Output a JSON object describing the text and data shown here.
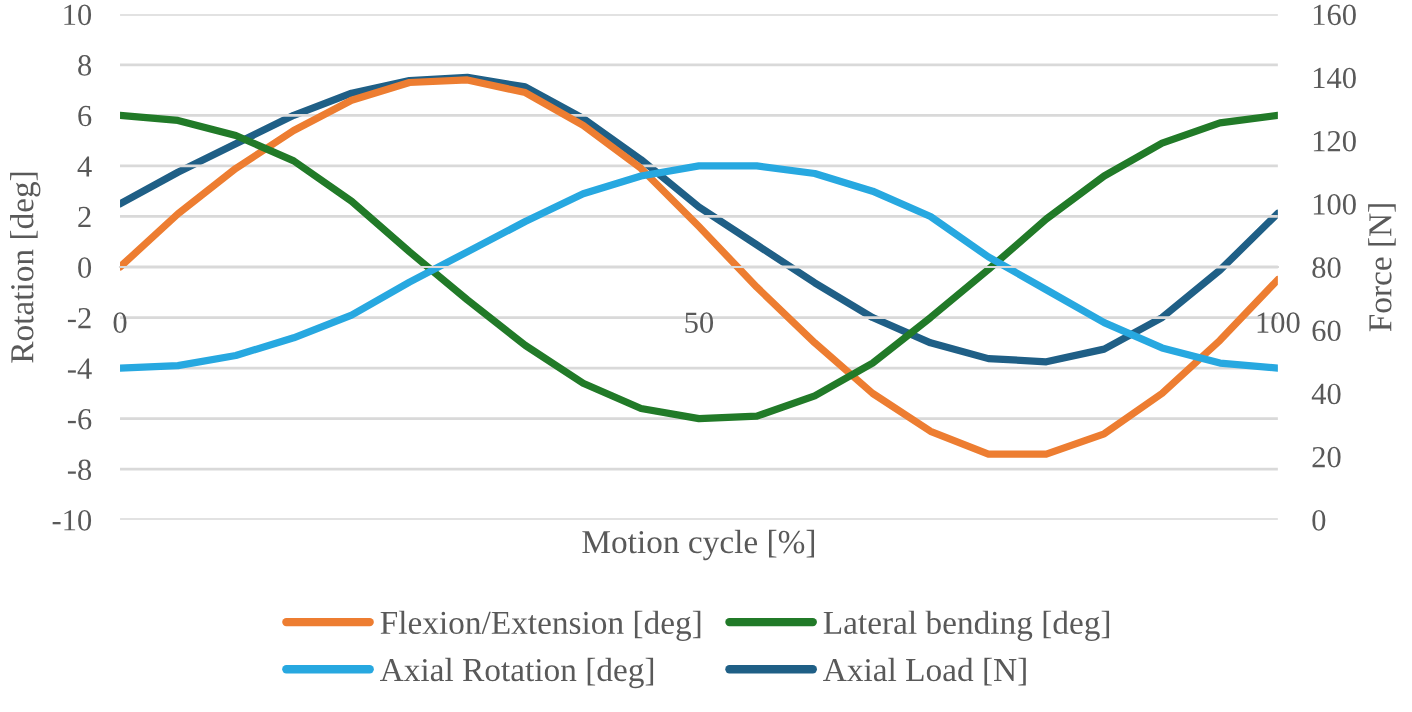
{
  "chart_data": {
    "type": "line",
    "xlabel": "Motion cycle [%]",
    "ylabel": "Rotation [deg]",
    "y2label": "Force [N]",
    "x": [
      0,
      5,
      10,
      15,
      20,
      25,
      30,
      35,
      40,
      45,
      50,
      55,
      60,
      65,
      70,
      75,
      80,
      85,
      90,
      95,
      100
    ],
    "series": [
      {
        "name": "Flexion/Extension [deg]",
        "color": "#ed7d31",
        "values": [
          0,
          2.1,
          3.9,
          5.4,
          6.6,
          7.3,
          7.4,
          6.9,
          5.6,
          3.9,
          1.6,
          -0.8,
          -3.0,
          -5.0,
          -6.5,
          -7.4,
          -7.4,
          -6.6,
          -5.0,
          -2.9,
          -0.5
        ]
      },
      {
        "name": "Lateral bending [deg]",
        "color": "#217a28",
        "values": [
          6.0,
          5.8,
          5.2,
          4.2,
          2.6,
          0.6,
          -1.3,
          -3.1,
          -4.6,
          -5.6,
          -6.0,
          -5.9,
          -5.1,
          -3.8,
          -2.0,
          -0.1,
          1.9,
          3.6,
          4.9,
          5.7,
          6.0
        ]
      },
      {
        "name": "Axial Rotation [deg]",
        "color": "#27a8e0",
        "values": [
          -4.0,
          -3.9,
          -3.5,
          -2.8,
          -1.9,
          -0.6,
          0.6,
          1.8,
          2.9,
          3.6,
          4.0,
          4.0,
          3.7,
          3.0,
          2.0,
          0.4,
          -0.9,
          -2.2,
          -3.2,
          -3.8,
          -4.0
        ]
      },
      {
        "name": "Axial Load [N]",
        "color": "#1f5f86",
        "axis": "y2",
        "values": [
          100,
          110,
          119,
          128,
          135,
          139,
          140,
          137,
          127,
          114,
          99,
          87,
          75,
          64,
          56,
          51,
          50,
          54,
          64,
          79,
          97
        ]
      }
    ],
    "xlim": [
      0,
      100
    ],
    "xticks": [
      0,
      50,
      100
    ],
    "ylim": [
      -10,
      10
    ],
    "yticks": [
      -10,
      -8,
      -6,
      -4,
      -2,
      0,
      2,
      4,
      6,
      8,
      10
    ],
    "y2lim": [
      0,
      160
    ],
    "y2ticks": [
      0,
      20,
      40,
      60,
      80,
      100,
      120,
      140,
      160
    ],
    "grid": "y",
    "legend": "bottom",
    "line_style": "solid",
    "marker": "none"
  }
}
